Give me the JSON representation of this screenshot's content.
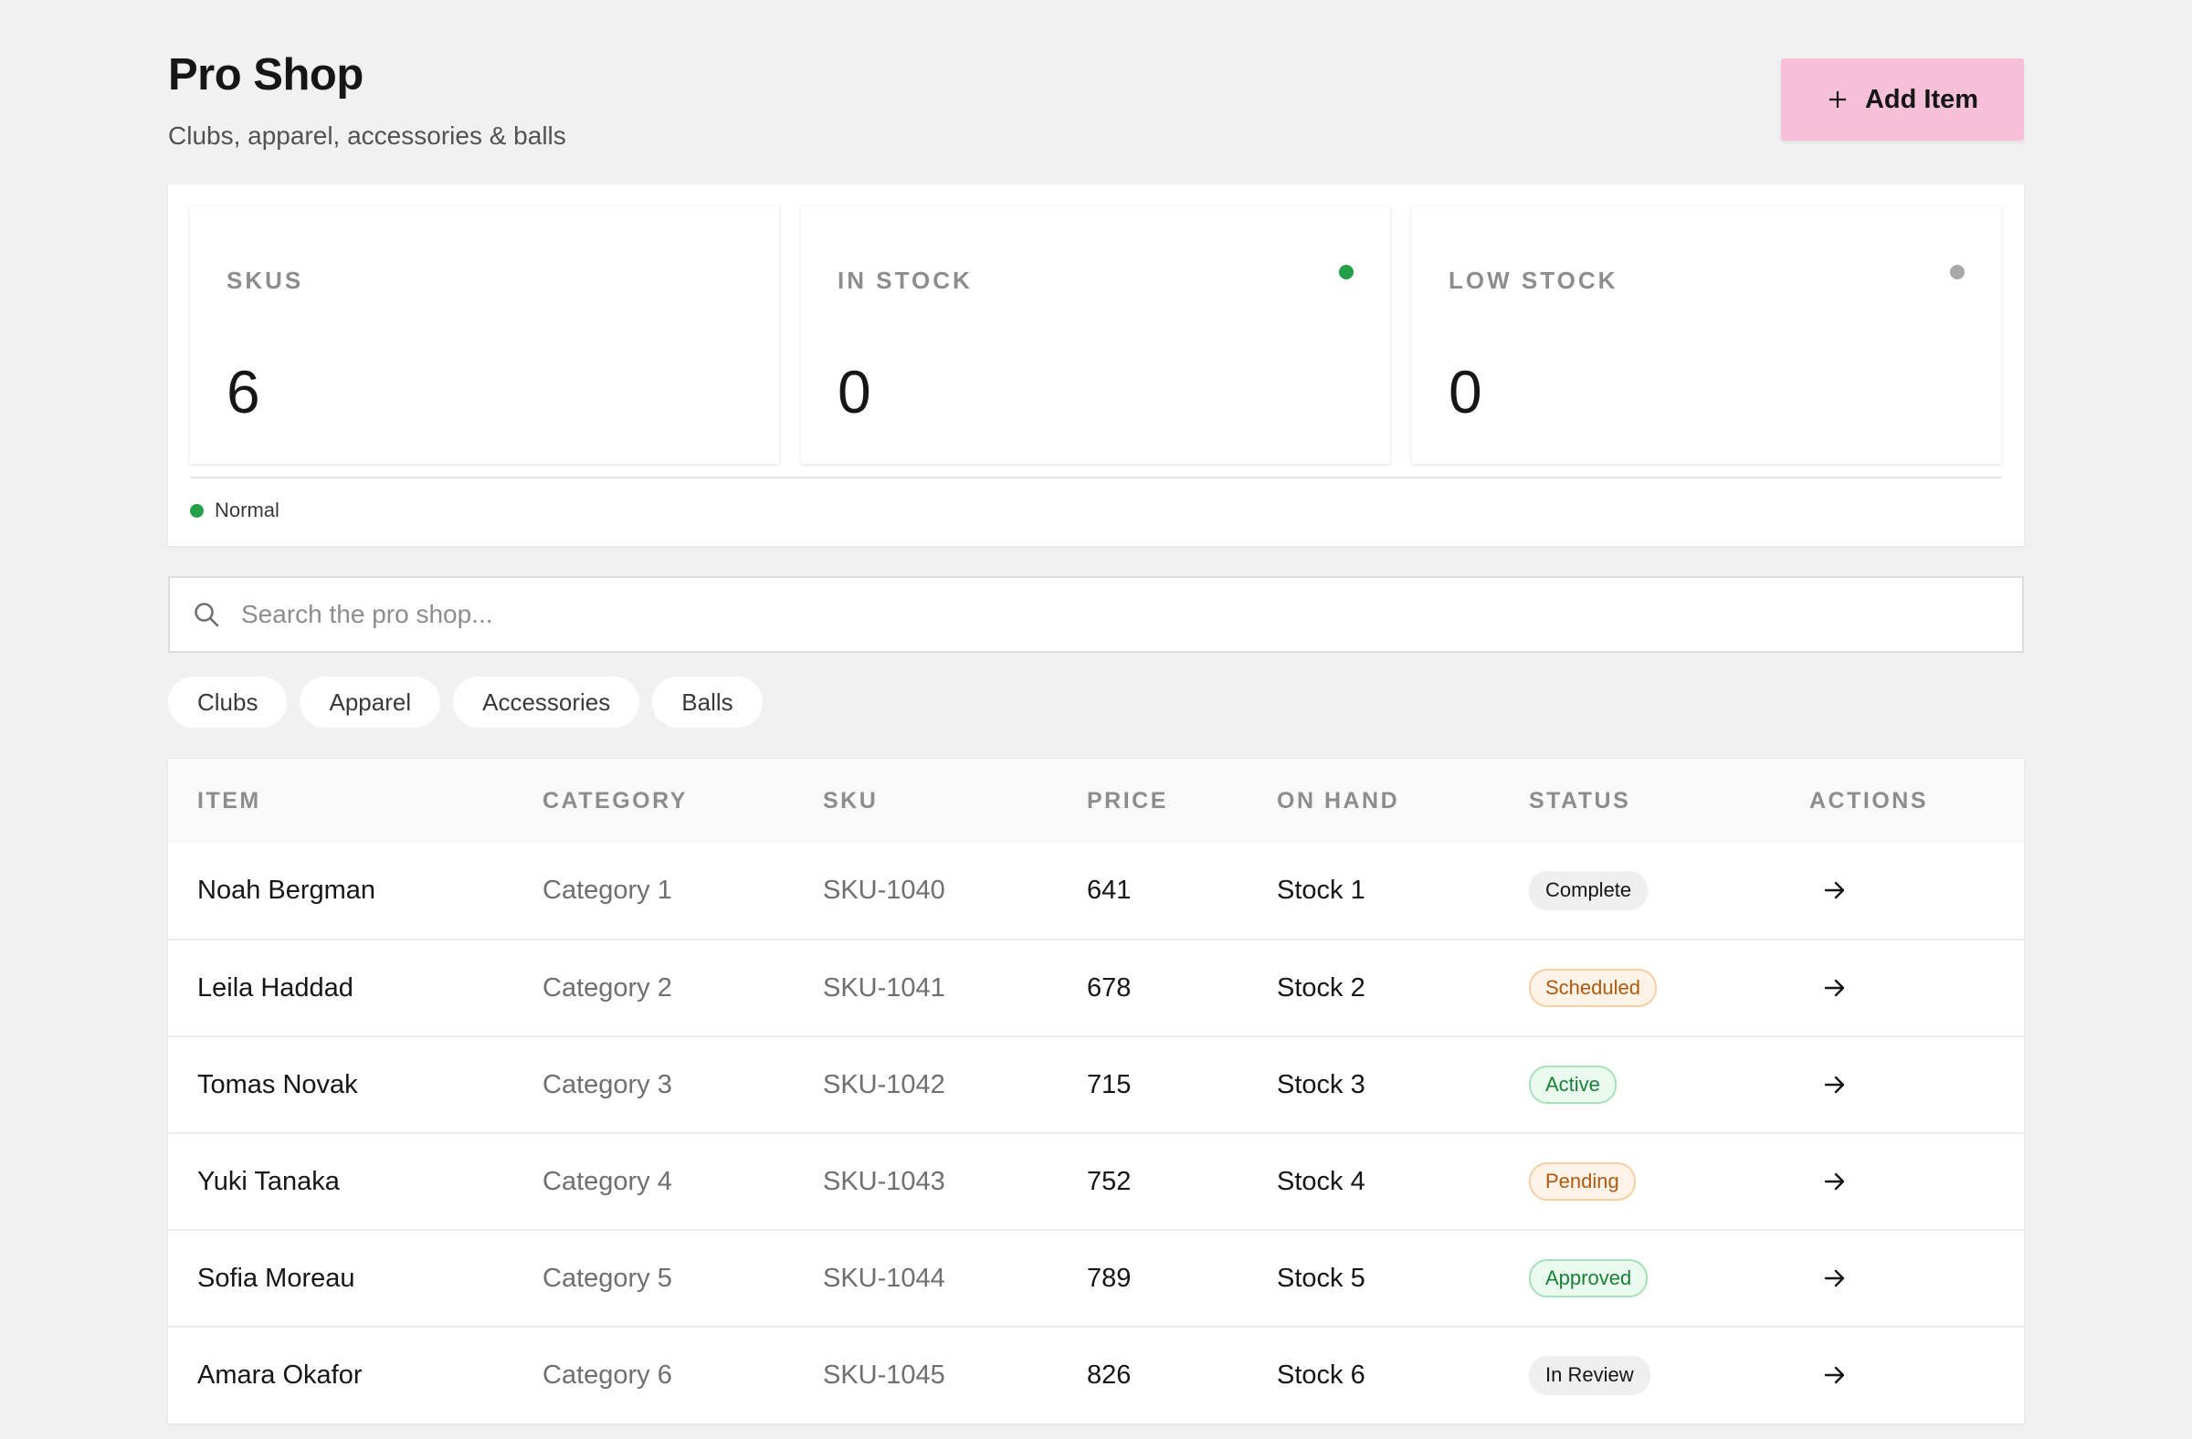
{
  "header": {
    "title": "Pro Shop",
    "subtitle": "Clubs, apparel, accessories & balls",
    "add_button_label": "Add Item",
    "add_button_icon": "plus-icon"
  },
  "stats": [
    {
      "label": "SKUS",
      "value": "6",
      "indicator": null
    },
    {
      "label": "IN STOCK",
      "value": "0",
      "indicator": "#24a148"
    },
    {
      "label": "LOW STOCK",
      "value": "0",
      "indicator": "#a8a8a8"
    }
  ],
  "legend": {
    "label": "Normal",
    "color": "#24a148"
  },
  "search": {
    "placeholder": "Search the pro shop...",
    "value": "",
    "icon": "search-icon"
  },
  "filters": [
    "Clubs",
    "Apparel",
    "Accessories",
    "Balls"
  ],
  "table": {
    "columns": [
      "ITEM",
      "CATEGORY",
      "SKU",
      "PRICE",
      "ON HAND",
      "STATUS",
      "ACTIONS"
    ],
    "rows": [
      {
        "item": "Noah Bergman",
        "category": "Category 1",
        "sku": "SKU-1040",
        "price": "641",
        "on_hand": "Stock 1",
        "status": "Complete",
        "status_tone": "neutral"
      },
      {
        "item": "Leila Haddad",
        "category": "Category 2",
        "sku": "SKU-1041",
        "price": "678",
        "on_hand": "Stock 2",
        "status": "Scheduled",
        "status_tone": "orange"
      },
      {
        "item": "Tomas Novak",
        "category": "Category 3",
        "sku": "SKU-1042",
        "price": "715",
        "on_hand": "Stock 3",
        "status": "Active",
        "status_tone": "green"
      },
      {
        "item": "Yuki Tanaka",
        "category": "Category 4",
        "sku": "SKU-1043",
        "price": "752",
        "on_hand": "Stock 4",
        "status": "Pending",
        "status_tone": "orange"
      },
      {
        "item": "Sofia Moreau",
        "category": "Category 5",
        "sku": "SKU-1044",
        "price": "789",
        "on_hand": "Stock 5",
        "status": "Approved",
        "status_tone": "green"
      },
      {
        "item": "Amara Okafor",
        "category": "Category 6",
        "sku": "SKU-1045",
        "price": "826",
        "on_hand": "Stock 6",
        "status": "In Review",
        "status_tone": "neutral"
      }
    ],
    "row_action_icon": "arrow-right-icon"
  },
  "colors": {
    "accent_button": "#f6c0d8",
    "status_green": "#24a148",
    "status_gray": "#a8a8a8",
    "page_background": "#f1f1f1"
  }
}
